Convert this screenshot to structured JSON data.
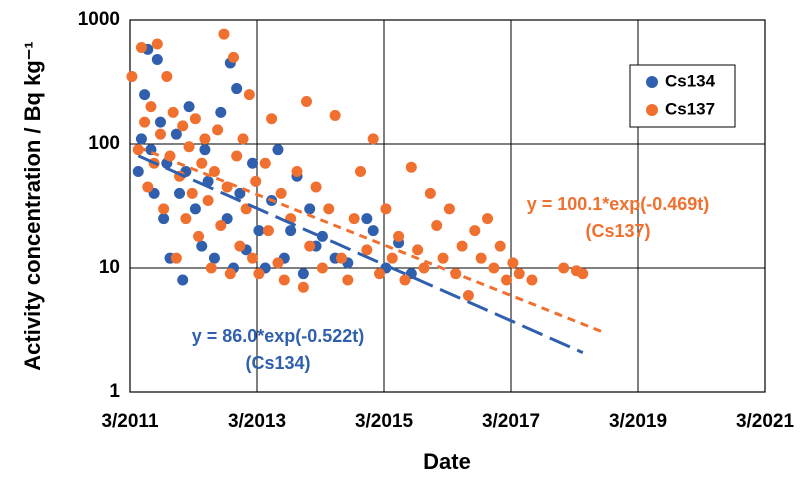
{
  "chart_data": {
    "type": "scatter",
    "xlabel": "Date",
    "ylabel": "Activity concentration / Bq kg⁻¹",
    "xlim": [
      2011.17,
      2021.17
    ],
    "xticks": [
      {
        "value": 2011.17,
        "label": "3/2011"
      },
      {
        "value": 2013.17,
        "label": "3/2013"
      },
      {
        "value": 2015.17,
        "label": "3/2015"
      },
      {
        "value": 2017.17,
        "label": "3/2017"
      },
      {
        "value": 2019.17,
        "label": "3/2019"
      },
      {
        "value": 2021.17,
        "label": "3/2021"
      }
    ],
    "ylim": [
      1,
      1000
    ],
    "yticks": [
      1,
      10,
      100,
      1000
    ],
    "log_y": true,
    "grid": true,
    "legend": "upper right",
    "series": [
      {
        "name": "Cs134",
        "color": "#2f5fad",
        "x": [
          2011.3,
          2011.35,
          2011.4,
          2011.45,
          2011.5,
          2011.55,
          2011.6,
          2011.65,
          2011.7,
          2011.75,
          2011.8,
          2011.9,
          2011.95,
          2012.0,
          2012.05,
          2012.1,
          2012.2,
          2012.3,
          2012.35,
          2012.4,
          2012.5,
          2012.6,
          2012.7,
          2012.75,
          2012.8,
          2012.85,
          2012.9,
          2013.0,
          2013.1,
          2013.2,
          2013.3,
          2013.4,
          2013.5,
          2013.6,
          2013.7,
          2013.8,
          2013.9,
          2014.0,
          2014.1,
          2014.2,
          2014.4,
          2014.6,
          2014.9,
          2015.0,
          2015.2,
          2015.4,
          2015.6
        ],
        "values": [
          60,
          110,
          250,
          580,
          90,
          40,
          480,
          150,
          25,
          70,
          12,
          120,
          40,
          8,
          60,
          200,
          30,
          15,
          90,
          50,
          12,
          180,
          25,
          450,
          10,
          280,
          40,
          14,
          70,
          20,
          10,
          35,
          90,
          12,
          20,
          55,
          9,
          30,
          15,
          18,
          12,
          11,
          25,
          20,
          10,
          16,
          9
        ]
      },
      {
        "name": "Cs137",
        "color": "#f07030",
        "x": [
          2011.2,
          2011.3,
          2011.35,
          2011.4,
          2011.45,
          2011.5,
          2011.55,
          2011.6,
          2011.65,
          2011.7,
          2011.75,
          2011.8,
          2011.85,
          2011.9,
          2011.95,
          2012.0,
          2012.05,
          2012.1,
          2012.15,
          2012.2,
          2012.25,
          2012.3,
          2012.35,
          2012.4,
          2012.45,
          2012.5,
          2012.55,
          2012.6,
          2012.65,
          2012.7,
          2012.75,
          2012.8,
          2012.85,
          2012.9,
          2012.95,
          2013.0,
          2013.05,
          2013.1,
          2013.15,
          2013.2,
          2013.3,
          2013.35,
          2013.4,
          2013.5,
          2013.55,
          2013.6,
          2013.7,
          2013.8,
          2013.9,
          2013.95,
          2014.0,
          2014.1,
          2014.2,
          2014.3,
          2014.4,
          2014.5,
          2014.6,
          2014.7,
          2014.8,
          2014.9,
          2015.0,
          2015.1,
          2015.2,
          2015.3,
          2015.4,
          2015.5,
          2015.6,
          2015.7,
          2015.8,
          2015.9,
          2016.0,
          2016.1,
          2016.2,
          2016.3,
          2016.4,
          2016.5,
          2016.6,
          2016.7,
          2016.8,
          2016.9,
          2017.0,
          2017.1,
          2017.2,
          2017.3,
          2017.5,
          2018.0,
          2018.2,
          2018.3
        ],
        "values": [
          350,
          90,
          600,
          150,
          45,
          200,
          70,
          640,
          120,
          30,
          350,
          80,
          180,
          12,
          55,
          140,
          25,
          95,
          40,
          160,
          18,
          70,
          110,
          35,
          10,
          60,
          130,
          22,
          770,
          45,
          9,
          500,
          80,
          15,
          110,
          30,
          250,
          12,
          50,
          9,
          70,
          20,
          160,
          11,
          40,
          8,
          25,
          60,
          7,
          220,
          15,
          45,
          10,
          30,
          170,
          12,
          8,
          25,
          60,
          14,
          110,
          9,
          30,
          12,
          18,
          8,
          65,
          14,
          10,
          40,
          22,
          12,
          30,
          9,
          15,
          6,
          20,
          12,
          25,
          10,
          15,
          8,
          11,
          9,
          8,
          10,
          9.5,
          9
        ]
      }
    ],
    "fits": [
      {
        "name": "Cs134",
        "a": 86.0,
        "b": -0.522,
        "t0": 2011.17,
        "x_range": [
          2011.3,
          2018.3
        ]
      },
      {
        "name": "Cs137",
        "a": 100.1,
        "b": -0.469,
        "t0": 2011.17,
        "x_range": [
          2011.3,
          2018.6
        ]
      }
    ],
    "annotations": [
      {
        "lines": [
          "y = 86.0*exp(-0.522t)",
          "(Cs134)"
        ],
        "color": "#2f5fad"
      },
      {
        "lines": [
          "y = 100.1*exp(-0.469t)",
          "(Cs137)"
        ],
        "color": "#f07030"
      }
    ]
  }
}
